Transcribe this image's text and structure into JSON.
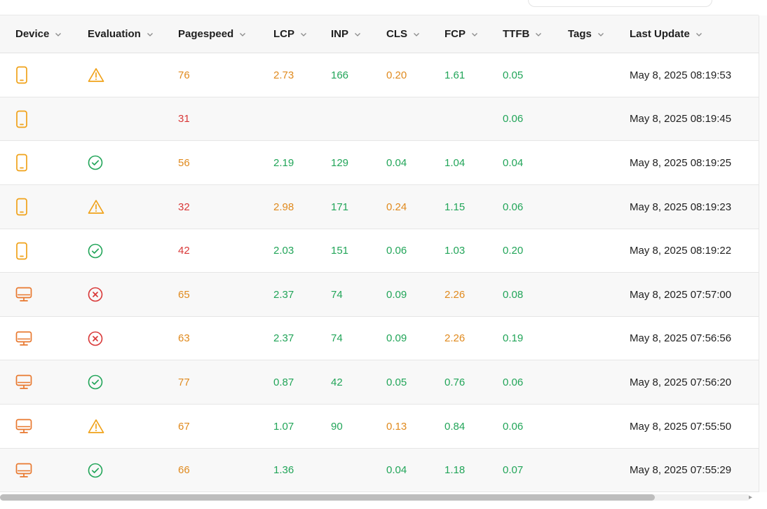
{
  "table": {
    "columns": [
      {
        "key": "device",
        "label": "Device"
      },
      {
        "key": "evaluation",
        "label": "Evaluation"
      },
      {
        "key": "pagespeed",
        "label": "Pagespeed"
      },
      {
        "key": "lcp",
        "label": "LCP"
      },
      {
        "key": "inp",
        "label": "INP"
      },
      {
        "key": "cls",
        "label": "CLS"
      },
      {
        "key": "fcp",
        "label": "FCP"
      },
      {
        "key": "ttfb",
        "label": "TTFB"
      },
      {
        "key": "tags",
        "label": "Tags"
      },
      {
        "key": "last_update",
        "label": "Last Update"
      }
    ],
    "rows": [
      {
        "device": "mobile-icon",
        "evaluation": "warning-icon",
        "pagespeed": "76",
        "lcp": "2.73",
        "inp": "166",
        "cls": "0.20",
        "fcp": "1.61",
        "ttfb": "0.05",
        "tags": "",
        "last_update": "May 8, 2025 08:19:53"
      },
      {
        "device": "mobile-icon",
        "evaluation": "",
        "pagespeed": "31",
        "lcp": "",
        "inp": "",
        "cls": "",
        "fcp": "",
        "ttfb": "0.06",
        "tags": "",
        "last_update": "May 8, 2025 08:19:45"
      },
      {
        "device": "mobile-icon",
        "evaluation": "check-circle-icon",
        "pagespeed": "56",
        "lcp": "2.19",
        "inp": "129",
        "cls": "0.04",
        "fcp": "1.04",
        "ttfb": "0.04",
        "tags": "",
        "last_update": "May 8, 2025 08:19:25"
      },
      {
        "device": "mobile-icon",
        "evaluation": "warning-icon",
        "pagespeed": "32",
        "lcp": "2.98",
        "inp": "171",
        "cls": "0.24",
        "fcp": "1.15",
        "ttfb": "0.06",
        "tags": "",
        "last_update": "May 8, 2025 08:19:23"
      },
      {
        "device": "mobile-icon",
        "evaluation": "check-circle-icon",
        "pagespeed": "42",
        "lcp": "2.03",
        "inp": "151",
        "cls": "0.06",
        "fcp": "1.03",
        "ttfb": "0.20",
        "tags": "",
        "last_update": "May 8, 2025 08:19:22"
      },
      {
        "device": "desktop-icon",
        "evaluation": "x-circle-icon",
        "pagespeed": "65",
        "lcp": "2.37",
        "inp": "74",
        "cls": "0.09",
        "fcp": "2.26",
        "ttfb": "0.08",
        "tags": "",
        "last_update": "May 8, 2025 07:57:00"
      },
      {
        "device": "desktop-icon",
        "evaluation": "x-circle-icon",
        "pagespeed": "63",
        "lcp": "2.37",
        "inp": "74",
        "cls": "0.09",
        "fcp": "2.26",
        "ttfb": "0.19",
        "tags": "",
        "last_update": "May 8, 2025 07:56:56"
      },
      {
        "device": "desktop-icon",
        "evaluation": "check-circle-icon",
        "pagespeed": "77",
        "lcp": "0.87",
        "inp": "42",
        "cls": "0.05",
        "fcp": "0.76",
        "ttfb": "0.06",
        "tags": "",
        "last_update": "May 8, 2025 07:56:20"
      },
      {
        "device": "desktop-icon",
        "evaluation": "warning-icon",
        "pagespeed": "67",
        "lcp": "1.07",
        "inp": "90",
        "cls": "0.13",
        "fcp": "0.84",
        "ttfb": "0.06",
        "tags": "",
        "last_update": "May 8, 2025 07:55:50"
      },
      {
        "device": "desktop-icon",
        "evaluation": "check-circle-icon",
        "pagespeed": "66",
        "lcp": "1.36",
        "inp": "",
        "cls": "0.04",
        "fcp": "1.18",
        "ttfb": "0.07",
        "tags": "",
        "last_update": "May 8, 2025 07:55:29"
      }
    ],
    "cell_colors": [
      {
        "pagespeed": "#e08a1e",
        "lcp": "#e08a1e",
        "inp": "#22a559",
        "cls": "#e08a1e",
        "fcp": "#22a559",
        "ttfb": "#22a559"
      },
      {
        "pagespeed": "#d93838",
        "lcp": "",
        "inp": "",
        "cls": "",
        "fcp": "",
        "ttfb": "#22a559"
      },
      {
        "pagespeed": "#e08a1e",
        "lcp": "#22a559",
        "inp": "#22a559",
        "cls": "#22a559",
        "fcp": "#22a559",
        "ttfb": "#22a559"
      },
      {
        "pagespeed": "#d93838",
        "lcp": "#e08a1e",
        "inp": "#22a559",
        "cls": "#e08a1e",
        "fcp": "#22a559",
        "ttfb": "#22a559"
      },
      {
        "pagespeed": "#d93838",
        "lcp": "#22a559",
        "inp": "#22a559",
        "cls": "#22a559",
        "fcp": "#22a559",
        "ttfb": "#22a559"
      },
      {
        "pagespeed": "#e08a1e",
        "lcp": "#22a559",
        "inp": "#22a559",
        "cls": "#22a559",
        "fcp": "#e08a1e",
        "ttfb": "#22a559"
      },
      {
        "pagespeed": "#e08a1e",
        "lcp": "#22a559",
        "inp": "#22a559",
        "cls": "#22a559",
        "fcp": "#e08a1e",
        "ttfb": "#22a559"
      },
      {
        "pagespeed": "#e08a1e",
        "lcp": "#22a559",
        "inp": "#22a559",
        "cls": "#22a559",
        "fcp": "#22a559",
        "ttfb": "#22a559"
      },
      {
        "pagespeed": "#e08a1e",
        "lcp": "#22a559",
        "inp": "#22a559",
        "cls": "#e08a1e",
        "fcp": "#22a559",
        "ttfb": "#22a559"
      },
      {
        "pagespeed": "#e08a1e",
        "lcp": "#22a559",
        "inp": "",
        "cls": "#22a559",
        "fcp": "#22a559",
        "ttfb": "#22a559"
      }
    ]
  },
  "colors": {
    "mobile": "#f0a21a",
    "desktop": "#e8782e",
    "warning": "#f0a21a",
    "ok": "#22a559",
    "error": "#d93838",
    "header_bg": "#f7f7f7",
    "alt_row_bg": "#f8f8f8"
  }
}
